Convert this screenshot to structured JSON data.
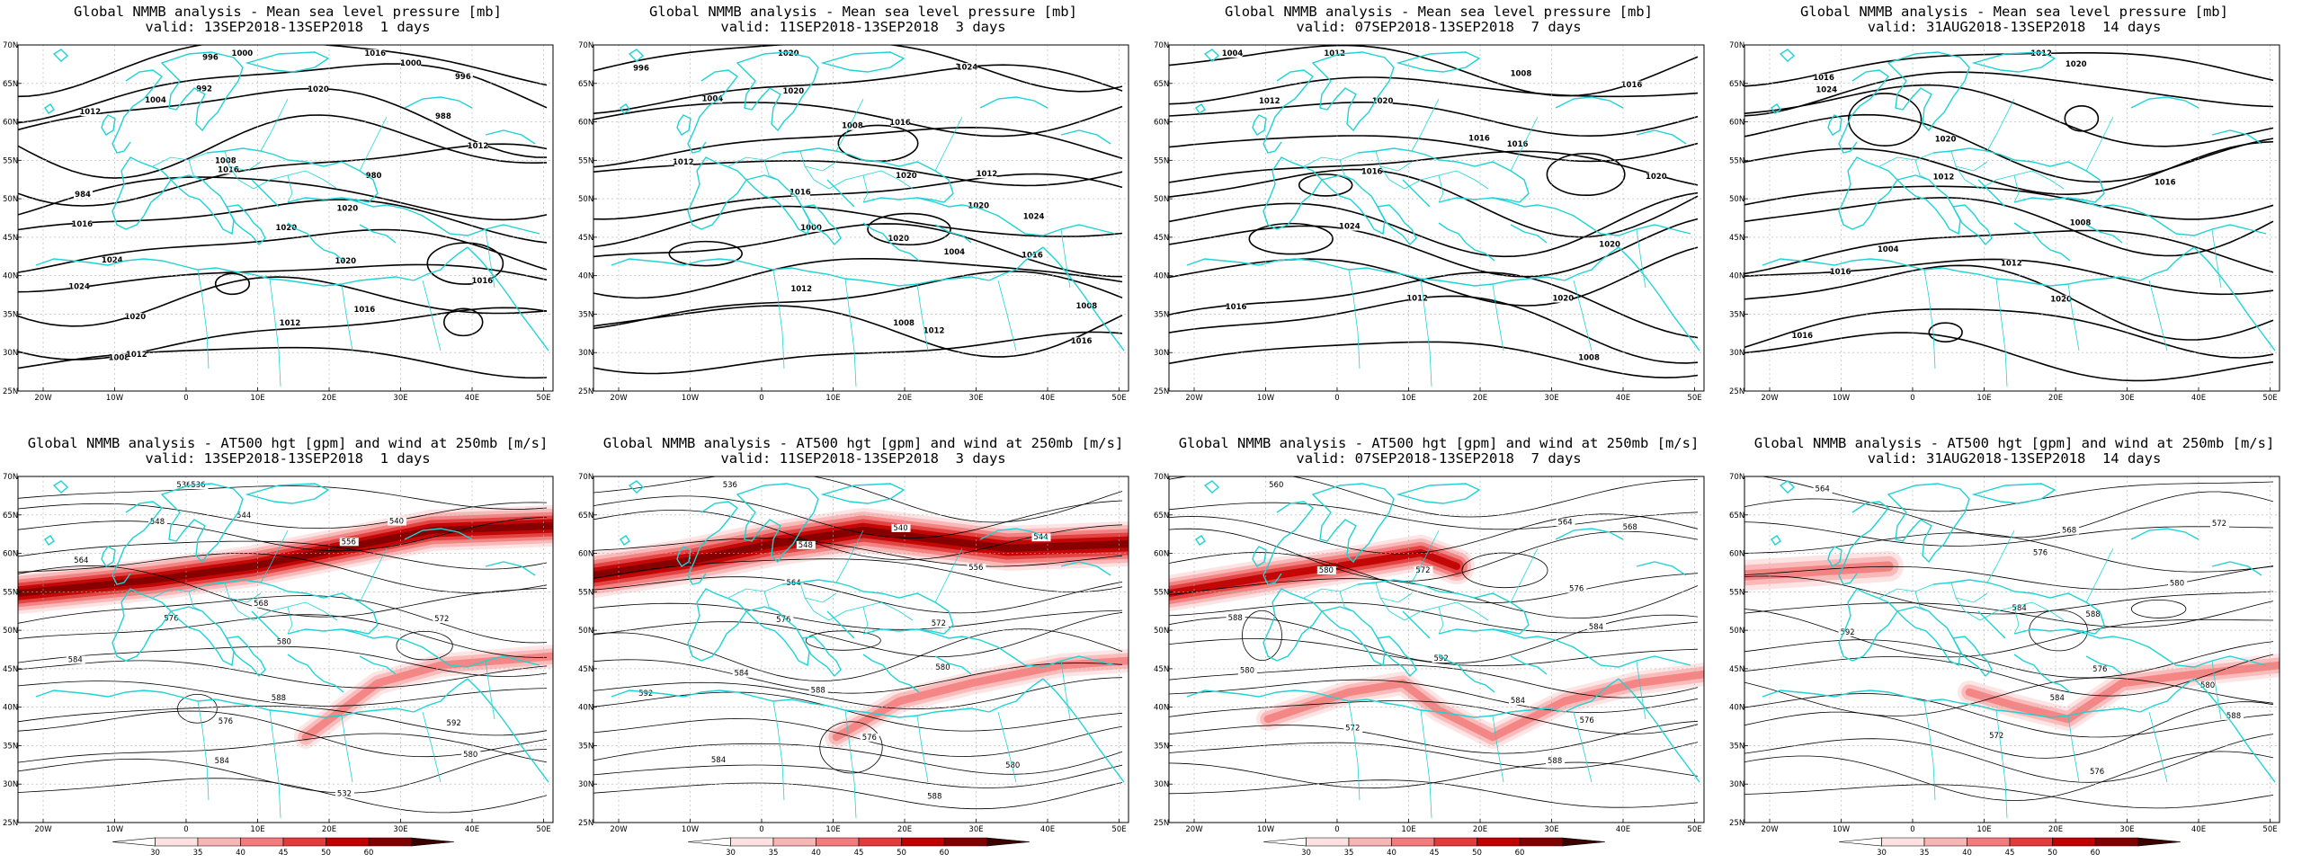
{
  "panels": [
    {
      "title": "Global NMMB analysis - Mean sea level pressure [mb]",
      "valid": "valid: 13SEP2018-13SEP2018  1 days",
      "type": "mslp",
      "contour_labels": [
        "996",
        "1000",
        "1004",
        "1008",
        "1012",
        "1016",
        "1020",
        "1024",
        "1020",
        "1016",
        "1012",
        "1008",
        "1000",
        "996",
        "992",
        "988",
        "984",
        "980",
        "1016",
        "1020",
        "1024",
        "1020",
        "1016",
        "1012",
        "1016",
        "1012",
        "1020"
      ]
    },
    {
      "title": "Global NMMB analysis - Mean sea level pressure [mb]",
      "valid": "valid: 11SEP2018-13SEP2018  3 days",
      "type": "mslp",
      "contour_labels": [
        "996",
        "1000",
        "1004",
        "1008",
        "1012",
        "1016",
        "1020",
        "1000",
        "1004",
        "1008",
        "1012",
        "1016",
        "1020",
        "1024",
        "1020",
        "1016",
        "1012",
        "1020",
        "1024",
        "1020",
        "1016",
        "1012",
        "1008"
      ]
    },
    {
      "title": "Global NMMB analysis - Mean sea level pressure [mb]",
      "valid": "valid: 07SEP2018-13SEP2018  7 days",
      "type": "mslp",
      "contour_labels": [
        "1004",
        "1008",
        "1012",
        "1016",
        "1020",
        "1016",
        "1020",
        "1024",
        "1020",
        "1016",
        "1012",
        "1008",
        "1012",
        "1016",
        "1020",
        "1016"
      ]
    },
    {
      "title": "Global NMMB analysis - Mean sea level pressure [mb]",
      "valid": "valid: 31AUG2018-13SEP2018  14 days",
      "type": "mslp",
      "contour_labels": [
        "1016",
        "1020",
        "1024",
        "1020",
        "1016",
        "1012",
        "1008",
        "1004",
        "1012",
        "1016",
        "1020",
        "1016",
        "1012"
      ]
    },
    {
      "title": "Global NMMB analysis - AT500 hgt [gpm] and wind at 250mb [m/s]",
      "valid": "valid: 13SEP2018-13SEP2018  1 days",
      "type": "hgt",
      "contour_labels": [
        "536",
        "540",
        "548",
        "556",
        "564",
        "568",
        "572",
        "576",
        "580",
        "584",
        "588",
        "592",
        "576",
        "580",
        "584",
        "532",
        "536",
        "544"
      ]
    },
    {
      "title": "Global NMMB analysis - AT500 hgt [gpm] and wind at 250mb [m/s]",
      "valid": "valid: 11SEP2018-13SEP2018  3 days",
      "type": "hgt",
      "contour_labels": [
        "536",
        "540",
        "544",
        "548",
        "556",
        "564",
        "572",
        "576",
        "580",
        "584",
        "588",
        "592",
        "576",
        "580",
        "584",
        "588"
      ]
    },
    {
      "title": "Global NMMB analysis - AT500 hgt [gpm] and wind at 250mb [m/s]",
      "valid": "valid: 07SEP2018-13SEP2018  7 days",
      "type": "hgt",
      "contour_labels": [
        "560",
        "564",
        "568",
        "572",
        "576",
        "580",
        "584",
        "588",
        "592",
        "580",
        "584",
        "576",
        "572",
        "588"
      ]
    },
    {
      "title": "Global NMMB analysis - AT500 hgt [gpm] and wind at 250mb [m/s]",
      "valid": "valid: 31AUG2018-13SEP2018  14 days",
      "type": "hgt",
      "contour_labels": [
        "564",
        "568",
        "572",
        "576",
        "580",
        "584",
        "588",
        "592",
        "576",
        "580",
        "584",
        "588",
        "572",
        "576"
      ]
    }
  ],
  "axes": {
    "lat_labels": [
      "70N",
      "65N",
      "60N",
      "55N",
      "50N",
      "45N",
      "40N",
      "35N",
      "30N",
      "25N"
    ],
    "lon_labels": [
      "20W",
      "10W",
      "0",
      "10E",
      "20E",
      "30E",
      "40E",
      "50E"
    ]
  },
  "colorbar": {
    "ticks": [
      "30",
      "35",
      "40",
      "45",
      "50",
      "60"
    ],
    "colors": [
      "#ffffff",
      "#fde0e0",
      "#f9b4b4",
      "#f27c7c",
      "#e03c3c",
      "#c00000",
      "#800000",
      "#3a0000"
    ]
  },
  "colors": {
    "coast": "#1fd3d3",
    "contour": "#000000",
    "grid": "#b0b0b0"
  }
}
